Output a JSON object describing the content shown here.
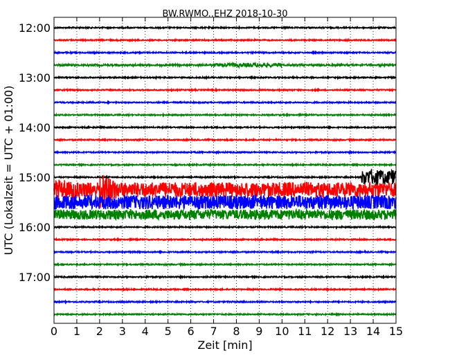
{
  "chart_data": {
    "type": "line",
    "title": "BW.RWMO..EHZ 2018-10-30",
    "xlabel": "Zeit  [min]",
    "ylabel": "UTC (Lokalzeit = UTC + 01:00)",
    "x_range": [
      0,
      15
    ],
    "x_ticks": [
      "0",
      "1",
      "2",
      "3",
      "4",
      "5",
      "6",
      "7",
      "8",
      "9",
      "10",
      "11",
      "12",
      "13",
      "14",
      "15"
    ],
    "y_tick_labels": [
      "12:00",
      "13:00",
      "14:00",
      "15:00",
      "16:00",
      "17:00"
    ],
    "grid": "vertical dotted",
    "trace_colors": [
      "#000000",
      "#ff0000",
      "#0000ff",
      "#008000"
    ],
    "traces": [
      {
        "start": "12:00",
        "amplitude": 0.15
      },
      {
        "start": "12:15",
        "amplitude": 0.15
      },
      {
        "start": "12:30",
        "amplitude": 0.15
      },
      {
        "start": "12:45",
        "amplitude": 0.2,
        "burst": {
          "x": [
            7,
            10
          ],
          "amplitude": 0.45
        }
      },
      {
        "start": "13:00",
        "amplitude": 0.15
      },
      {
        "start": "13:15",
        "amplitude": 0.15
      },
      {
        "start": "13:30",
        "amplitude": 0.15
      },
      {
        "start": "13:45",
        "amplitude": 0.15
      },
      {
        "start": "14:00",
        "amplitude": 0.15
      },
      {
        "start": "14:15",
        "amplitude": 0.15
      },
      {
        "start": "14:30",
        "amplitude": 0.15
      },
      {
        "start": "14:45",
        "amplitude": 0.15
      },
      {
        "start": "15:00",
        "amplitude": 0.15,
        "burst": {
          "x": [
            13.5,
            15
          ],
          "amplitude": 1.8
        }
      },
      {
        "start": "15:15",
        "amplitude": 1.8,
        "event": {
          "x": 2.0,
          "amplitude": 5.0
        }
      },
      {
        "start": "15:30",
        "amplitude": 1.7
      },
      {
        "start": "15:45",
        "amplitude": 1.2,
        "burst": {
          "x": [
            0,
            5.2
          ],
          "amplitude": 1.2
        }
      },
      {
        "start": "16:00",
        "amplitude": 0.15
      },
      {
        "start": "16:15",
        "amplitude": 0.15
      },
      {
        "start": "16:30",
        "amplitude": 0.15
      },
      {
        "start": "16:45",
        "amplitude": 0.15
      },
      {
        "start": "17:00",
        "amplitude": 0.15
      },
      {
        "start": "17:15",
        "amplitude": 0.15
      },
      {
        "start": "17:30",
        "amplitude": 0.15
      },
      {
        "start": "17:45",
        "amplitude": 0.15
      }
    ]
  }
}
